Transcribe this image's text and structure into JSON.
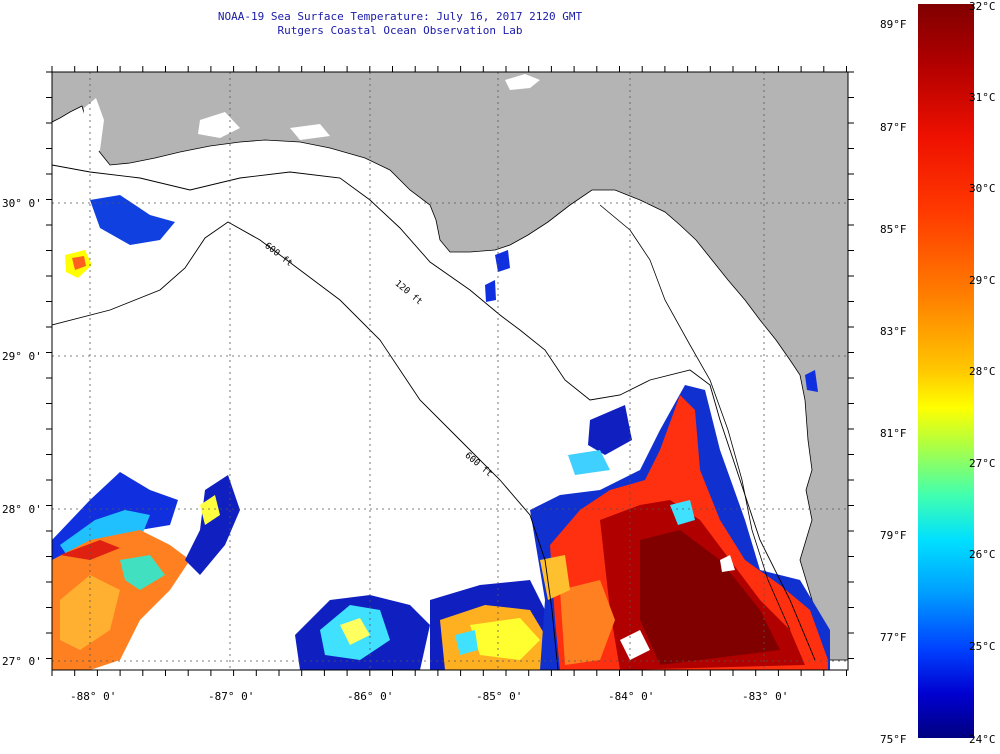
{
  "header": {
    "title_line1": "NOAA-19 Sea Surface Temperature:  July 16, 2017 2120 GMT",
    "title_line2": "Rutgers Coastal Ocean Observation Lab"
  },
  "map": {
    "lat_labels": [
      "30° 0'",
      "29° 0'",
      "28° 0'",
      "27° 0'"
    ],
    "lon_labels": [
      "-88° 0'",
      "-87° 0'",
      "-86° 0'",
      "-85° 0'",
      "-84° 0'",
      "-83° 0'"
    ],
    "isobath_labels": [
      "600 ft",
      "120 ft",
      "600 ft"
    ],
    "colors": {
      "land": "#b4b4b4",
      "grid": "#555555",
      "cloud": "#ffffff"
    }
  },
  "colorbar": {
    "fahrenheit_labels": [
      "89°F",
      "87°F",
      "85°F",
      "83°F",
      "81°F",
      "79°F",
      "77°F",
      "75°F"
    ],
    "celsius_labels": [
      "32°C",
      "31°C",
      "30°C",
      "29°C",
      "28°C",
      "27°C",
      "26°C",
      "25°C",
      "24°C"
    ],
    "range_celsius": [
      24,
      32
    ],
    "range_fahrenheit": [
      75,
      89.6
    ]
  }
}
